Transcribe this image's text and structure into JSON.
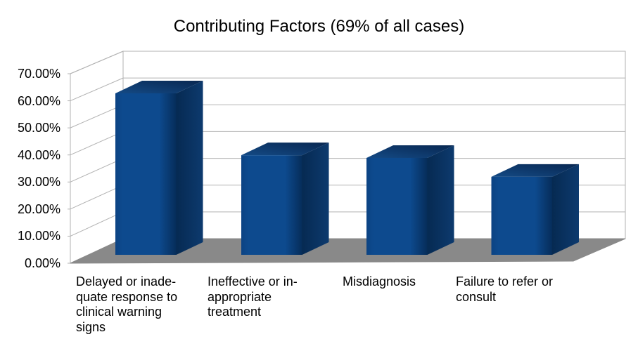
{
  "chart_data": {
    "type": "bar",
    "style": "3d-column",
    "title": "Contributing Factors (69% of all cases)",
    "categories": [
      "Delayed or inadequate response to clinical warning signs",
      "Ineffective or inappropriate treatment",
      "Misdiagnosis",
      "Failure to refer or consult"
    ],
    "category_label_lines": [
      [
        "Delayed or inade-",
        "quate response to",
        "clinical warning",
        "signs"
      ],
      [
        "Ineffective or in-",
        "appropriate",
        "treatment"
      ],
      [
        "Misdiagnosis"
      ],
      [
        "Failure to refer or",
        "consult"
      ]
    ],
    "values": [
      60,
      37,
      36,
      29
    ],
    "value_unit": "%",
    "ylabel": "",
    "xlabel": "",
    "ylim": [
      0,
      70
    ],
    "ytick_step": 10,
    "ytick_labels": [
      "0.00%",
      "10.00%",
      "20.00%",
      "30.00%",
      "40.00%",
      "50.00%",
      "60.00%",
      "70.00%"
    ],
    "grid": true,
    "legend_position": "none",
    "colors": {
      "bar_front": "#0d4a8e",
      "bar_front_left": "#0c4383",
      "bar_front_edge_dark": "#062d5a",
      "bar_top_light": "#144a85",
      "bar_top_dark": "#082751",
      "bar_side_dark": "#062a52",
      "bar_side_light": "#0d3a6e",
      "floor": "#898989",
      "wall": "#ffffff",
      "gridline": "#b2b2b2",
      "wall_border": "#b2b2b2",
      "background": "#ffffff",
      "text": "#000000"
    }
  }
}
